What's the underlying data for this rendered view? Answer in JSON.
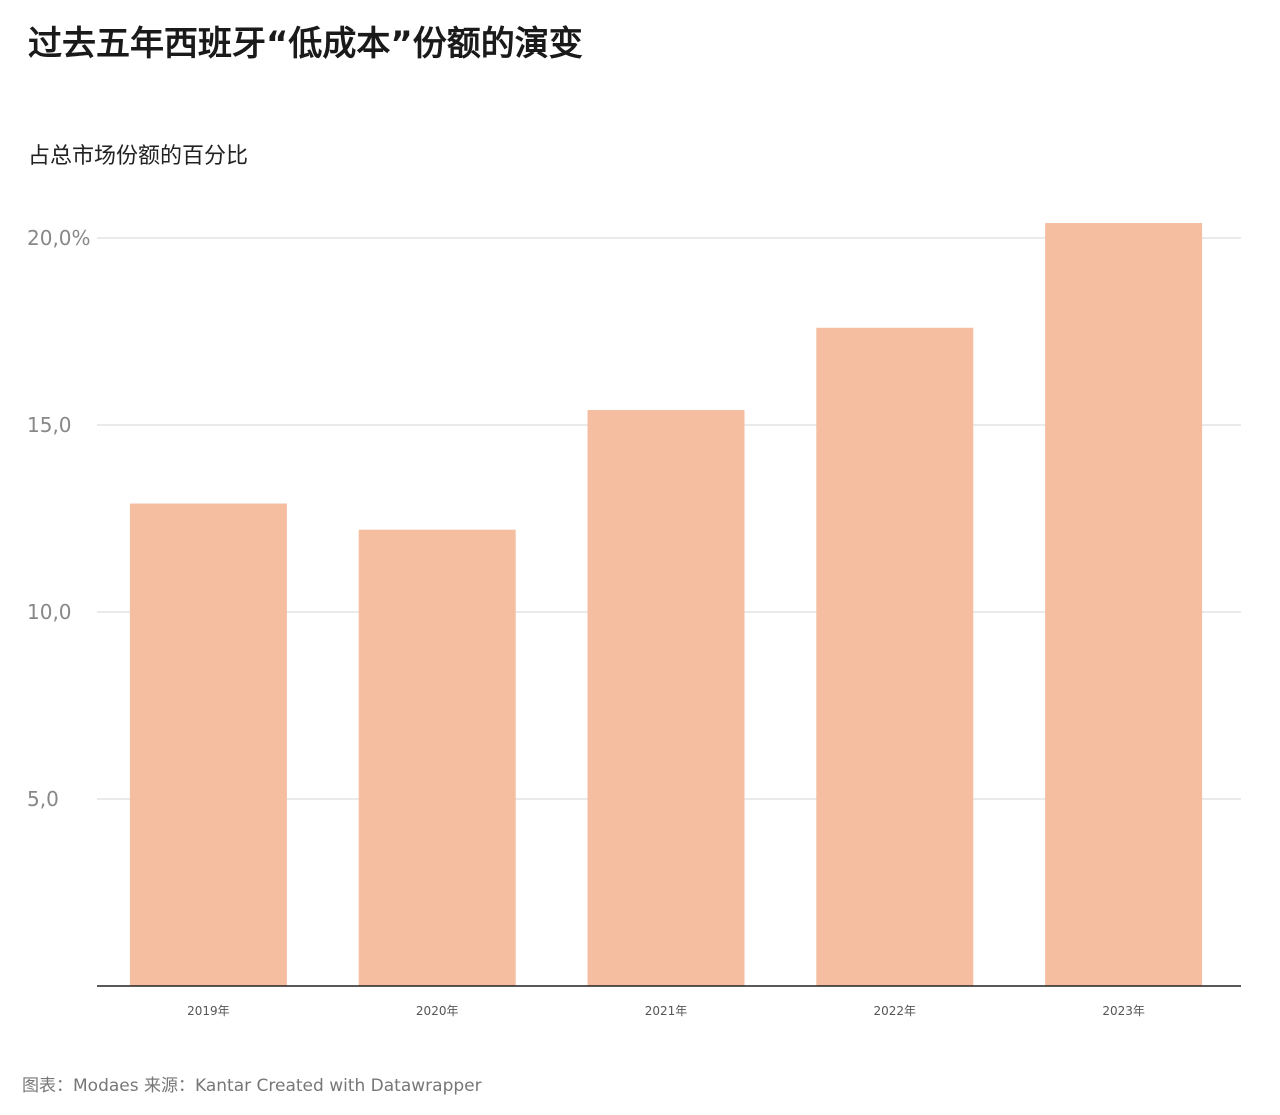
{
  "chart_data": {
    "type": "bar",
    "title": "过去五年西班牙“低成本”份额的演变",
    "subtitle": "占总市场份额的百分比",
    "categories": [
      "2019年",
      "2020年",
      "2021年",
      "2022年",
      "2023年"
    ],
    "values": [
      12.9,
      12.2,
      15.4,
      17.6,
      20.4
    ],
    "ylim": [
      0,
      20.4
    ],
    "yticks": [
      5,
      10,
      15,
      20
    ],
    "ytick_labels": [
      "5,0",
      "10,0",
      "15,0",
      "20,0%"
    ],
    "grid": true,
    "bar_color": "#f6bea1",
    "footer": "图表：Modaes 来源：Kantar Created with Datawrapper"
  }
}
